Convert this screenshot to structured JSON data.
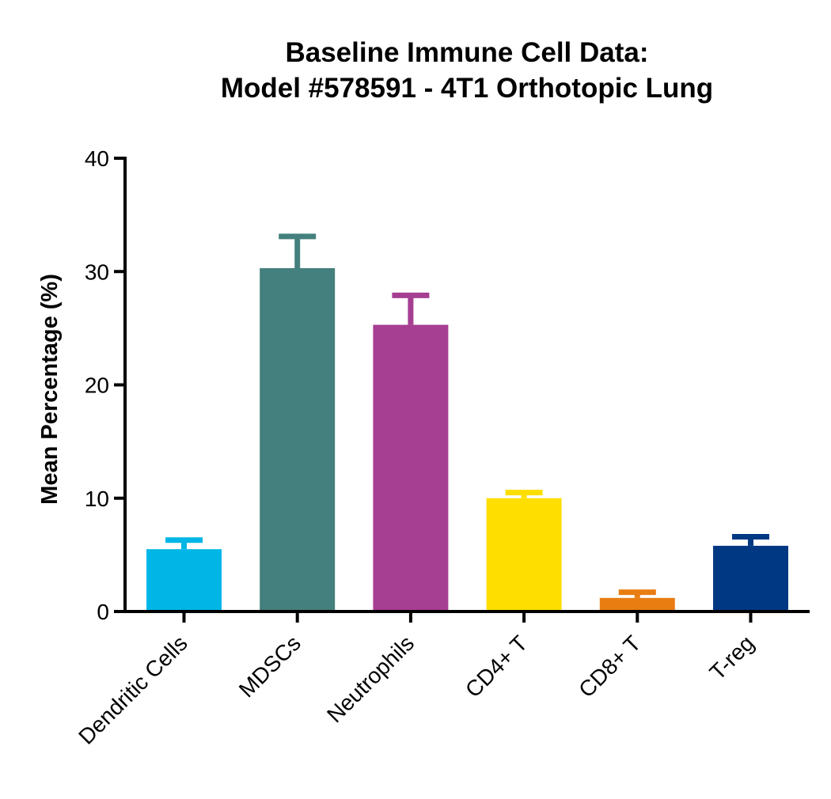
{
  "chart_data": {
    "type": "bar",
    "title": [
      "Baseline Immune  Cell Data:",
      "Model #578591 - 4T1 Orthotopic Lung"
    ],
    "xlabel": "",
    "ylabel": "Mean Percentage (%)",
    "ylim": [
      0,
      40
    ],
    "yticks": [
      "0",
      "10",
      "20",
      "30",
      "40"
    ],
    "grid": false,
    "categories": [
      "Dendritic Cells",
      "MDSCs",
      "Neutrophils",
      "CD4+ T",
      "CD8+ T",
      "T-reg"
    ],
    "values": [
      5.5,
      30.3,
      25.3,
      10.0,
      1.2,
      5.8
    ],
    "error_upper": [
      6.3,
      33.1,
      27.9,
      10.5,
      1.7,
      6.6
    ],
    "colors": [
      "#00B6E6",
      "#44807D",
      "#A63E92",
      "#FEDE00",
      "#E97D12",
      "#003883"
    ]
  }
}
